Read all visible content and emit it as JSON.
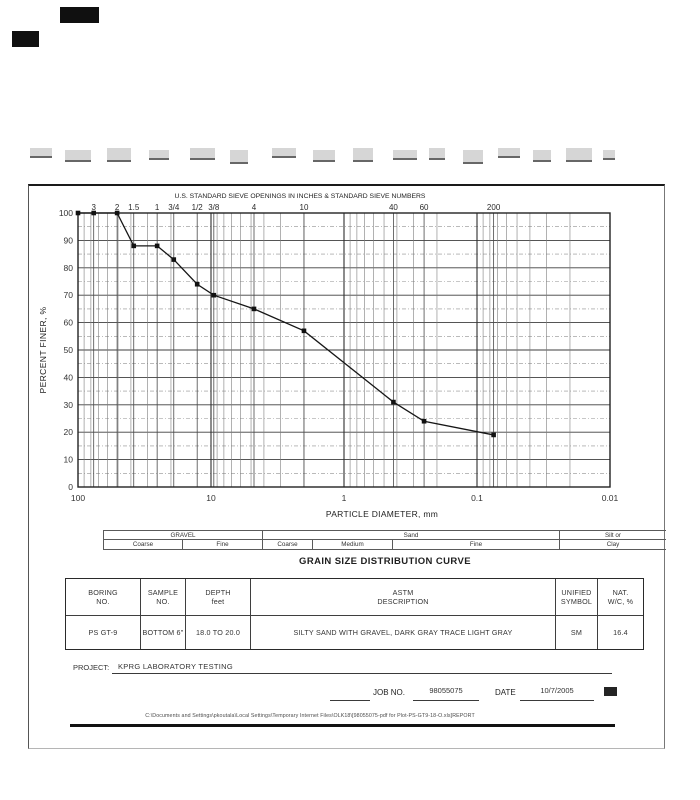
{
  "document": {
    "title": "GRAIN SIZE DISTRIBUTION CURVE",
    "project_label": "PROJECT:",
    "project_name": "KPRG LABORATORY TESTING",
    "job_label": "JOB NO.",
    "job_number": "98055075",
    "date_label": "DATE",
    "date_value": "10/7/2005",
    "footer_path": "C:\\Documents and Settings\\pkoutala\\Local Settings\\Temporary Internet Files\\OLK18\\[98055075-pdf for Plot-PS-GT9-18-O.xls]REPORT"
  },
  "classification": {
    "groups": [
      {
        "label": "GRAVEL",
        "sub": [
          "Coarse",
          "Fine"
        ]
      },
      {
        "label": "Sand",
        "sub": [
          "Coarse",
          "Medium",
          "Fine"
        ]
      },
      {
        "label": "Silt or",
        "sub": [
          "Clay"
        ]
      }
    ]
  },
  "table": {
    "headers": [
      {
        "l1": "BORING",
        "l2": "NO."
      },
      {
        "l1": "SAMPLE",
        "l2": "NO."
      },
      {
        "l1": "DEPTH",
        "l2": "feet"
      },
      {
        "l1": "ASTM",
        "l2": "DESCRIPTION"
      },
      {
        "l1": "UNIFIED",
        "l2": "SYMBOL"
      },
      {
        "l1": "NAT.",
        "l2": "W/C, %"
      }
    ],
    "row": {
      "boring_no": "PS GT-9",
      "sample_no": "BOTTOM 6\"",
      "depth": "18.0 TO 20.0",
      "astm_description": "SILTY SAND WITH GRAVEL, DARK GRAY TRACE LIGHT GRAY",
      "unified_symbol": "SM",
      "nat_wc": "16.4"
    }
  },
  "chart_data": {
    "type": "line",
    "header": "U.S. STANDARD SIEVE OPENINGS IN INCHES & STANDARD SIEVE NUMBERS",
    "ylabel": "PERCENT FINER, %",
    "xlabel": "PARTICLE DIAMETER, mm",
    "x_scale": "log",
    "x_reversed": true,
    "xlim": [
      100,
      0.01
    ],
    "ylim": [
      0,
      100
    ],
    "y_tick_step": 10,
    "y_minor_step": 5,
    "grid": "on",
    "x_decades": [
      100,
      10,
      1,
      0.1,
      0.01
    ],
    "x_decade_labels": [
      "100",
      "10",
      "1",
      "0.1",
      "0.01"
    ],
    "sieves": [
      {
        "label": "3",
        "mm": 76.2
      },
      {
        "label": "2",
        "mm": 50.8
      },
      {
        "label": "1.5",
        "mm": 38.1
      },
      {
        "label": "1",
        "mm": 25.4
      },
      {
        "label": "3/4",
        "mm": 19.05
      },
      {
        "label": "1/2",
        "mm": 12.7
      },
      {
        "label": "3/8",
        "mm": 9.525
      },
      {
        "label": "4",
        "mm": 4.75
      },
      {
        "label": "10",
        "mm": 2.0
      },
      {
        "label": "40",
        "mm": 0.425
      },
      {
        "label": "60",
        "mm": 0.25
      },
      {
        "label": "200",
        "mm": 0.075
      }
    ],
    "series": [
      {
        "name": "sample-gradation-curve",
        "points": [
          [
            100,
            100
          ],
          [
            76.2,
            100
          ],
          [
            50.8,
            100
          ],
          [
            38.1,
            88
          ],
          [
            25.4,
            88
          ],
          [
            19.05,
            83
          ],
          [
            12.7,
            74
          ],
          [
            9.525,
            70
          ],
          [
            4.75,
            65
          ],
          [
            2.0,
            57
          ],
          [
            0.425,
            31
          ],
          [
            0.25,
            24
          ],
          [
            0.075,
            19
          ]
        ]
      }
    ]
  }
}
